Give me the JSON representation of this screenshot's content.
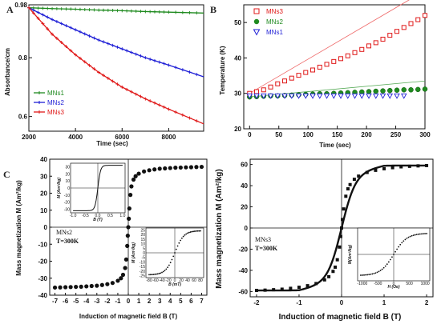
{
  "figure": {
    "panel_letters": [
      "A",
      "B",
      "C"
    ]
  },
  "chart_data": [
    {
      "id": "A",
      "type": "line",
      "xlabel": "Time (sec)",
      "ylabel": "Absorbance/cm",
      "xlim": [
        2000,
        9500
      ],
      "ylim": [
        0.55,
        0.98
      ],
      "xticks": [
        2000,
        4000,
        6000,
        8000
      ],
      "yticks": [
        0.6,
        0.8,
        0.98
      ],
      "ytick_labels": [
        "0.6",
        "0.8",
        "0.98"
      ],
      "legend_position": "bottom-left",
      "series": [
        {
          "name": "MNs1",
          "color": "#1f8a1f",
          "x": [
            2000,
            3000,
            4000,
            5000,
            6000,
            7000,
            8000,
            9500
          ],
          "values": [
            0.97,
            0.967,
            0.965,
            0.962,
            0.96,
            0.957,
            0.955,
            0.952
          ]
        },
        {
          "name": "MNs2",
          "color": "#1f1fd6",
          "x": [
            2000,
            3000,
            4000,
            5000,
            6000,
            7000,
            8000,
            9500
          ],
          "values": [
            0.97,
            0.93,
            0.895,
            0.86,
            0.83,
            0.8,
            0.775,
            0.735
          ]
        },
        {
          "name": "MNs3",
          "color": "#e01818",
          "x": [
            2000,
            3000,
            4000,
            5000,
            6000,
            7000,
            8000,
            9500
          ],
          "values": [
            0.97,
            0.88,
            0.81,
            0.75,
            0.7,
            0.66,
            0.625,
            0.575
          ]
        }
      ]
    },
    {
      "id": "B",
      "type": "scatter",
      "xlabel": "Time (sec)",
      "ylabel": "Temperature (K)",
      "xlim": [
        -10,
        300
      ],
      "ylim": [
        20,
        55
      ],
      "xticks": [
        0,
        50,
        100,
        150,
        200,
        250,
        300
      ],
      "yticks": [
        20,
        30,
        40,
        50
      ],
      "legend_position": "top-left",
      "series": [
        {
          "name": "MNs3",
          "color": "#e01818",
          "marker": "square",
          "x": [
            0,
            12,
            24,
            36,
            48,
            60,
            72,
            84,
            96,
            108,
            120,
            132,
            144,
            156,
            168,
            180,
            192,
            204,
            216,
            228,
            240,
            252,
            264,
            276,
            288,
            300
          ],
          "values": [
            30,
            30.5,
            31,
            31.8,
            32.7,
            33.5,
            34.3,
            35.1,
            35.9,
            36.6,
            37.4,
            38.2,
            39.0,
            39.8,
            40.6,
            41.5,
            42.4,
            43.4,
            44.3,
            45.3,
            46.4,
            47.5,
            48.6,
            49.7,
            50.8,
            52
          ]
        },
        {
          "name": "MNs2",
          "color": "#1f8a1f",
          "marker": "circle",
          "x": [
            0,
            12,
            24,
            36,
            48,
            60,
            72,
            84,
            96,
            108,
            120,
            132,
            144,
            156,
            168,
            180,
            192,
            204,
            216,
            228,
            240,
            252,
            264,
            276,
            288,
            300
          ],
          "values": [
            29,
            29.1,
            29.2,
            29.3,
            29.3,
            29.4,
            29.5,
            29.6,
            29.7,
            29.8,
            29.9,
            29.9,
            30.0,
            30.1,
            30.2,
            30.3,
            30.4,
            30.5,
            30.6,
            30.7,
            30.8,
            30.9,
            31.0,
            31.0,
            31.1,
            31.2
          ]
        },
        {
          "name": "MNs1",
          "color": "#1f1fd6",
          "marker": "triangle-down",
          "x": [
            0,
            12,
            24,
            36,
            48,
            60,
            72,
            84,
            96,
            108,
            120,
            132,
            144,
            156,
            168,
            180,
            192,
            204,
            216,
            228,
            240,
            252,
            264
          ],
          "values": [
            29.3,
            29.3,
            29.3,
            29.3,
            29.3,
            29.3,
            29.3,
            29.3,
            29.3,
            29.3,
            29.3,
            29.3,
            29.3,
            29.3,
            29.3,
            29.3,
            29.3,
            29.3,
            29.3,
            29.3,
            29.3,
            29.3,
            29.3
          ]
        }
      ],
      "fit_lines": [
        {
          "color": "#ee6666",
          "from": [
            0,
            30
          ],
          "to": [
            300,
            59
          ]
        },
        {
          "color": "#55aa55",
          "from": [
            0,
            29
          ],
          "to": [
            300,
            33.5
          ]
        }
      ]
    },
    {
      "id": "C-left",
      "type": "scatter",
      "xlabel": "Induction of magnetic field B (T)",
      "ylabel": "Mass magnetization M (Am²/kg)",
      "xlim": [
        -7.5,
        7.5
      ],
      "ylim": [
        -40,
        40
      ],
      "xticks": [
        -7,
        -6,
        -5,
        -4,
        -3,
        -2,
        -1,
        0,
        1,
        2,
        3,
        4,
        5,
        6,
        7
      ],
      "yticks": [
        -40,
        -30,
        -20,
        -10,
        0,
        10,
        20,
        30,
        40
      ],
      "annotation": [
        "MNs2",
        "T=300K"
      ],
      "series": [
        {
          "name": "MNs2",
          "color": "#111111",
          "B": [
            -7,
            -6.5,
            -6,
            -5.5,
            -5,
            -4.5,
            -4,
            -3.5,
            -3,
            -2.5,
            -2,
            -1.5,
            -1,
            -0.7,
            -0.5,
            -0.3,
            -0.2,
            -0.1,
            -0.05,
            0,
            0.05,
            0.1,
            0.2,
            0.3,
            0.5,
            0.7,
            1,
            1.5,
            2,
            2.5,
            3,
            3.5,
            4,
            4.5,
            5,
            5.5,
            6,
            6.5,
            7
          ],
          "M": [
            -35.5,
            -35.4,
            -35.3,
            -35.2,
            -35.1,
            -35,
            -34.8,
            -34.6,
            -34.4,
            -34,
            -33.5,
            -32.8,
            -31.5,
            -30,
            -28,
            -24,
            -19,
            -11,
            -5,
            0,
            5,
            11,
            19,
            24,
            28,
            30,
            31.5,
            32.8,
            33.5,
            34,
            34.4,
            34.6,
            34.8,
            35,
            35.1,
            35.2,
            35.3,
            35.4,
            35.5
          ]
        }
      ],
      "insets": [
        {
          "xlabel": "B (T)",
          "ylabel": "M (Am²/kg)",
          "xticks": [
            "-1.0",
            "-0.5",
            "0.0",
            "0.5",
            "1.0"
          ],
          "yticks": [
            "30",
            "20",
            "10",
            "0",
            "-10",
            "-20",
            "-30"
          ]
        },
        {
          "xlabel": "B (mT)",
          "ylabel": "M (Am²/kg)",
          "xticks": [
            "-80",
            "-60",
            "-40",
            "-20",
            "0",
            "20",
            "40",
            "60",
            "80"
          ],
          "yticks": [
            "25",
            "20",
            "15",
            "10",
            "5",
            "0",
            "-5",
            "-10",
            "-15",
            "-20",
            "-25"
          ]
        }
      ]
    },
    {
      "id": "C-right",
      "type": "scatter",
      "xlabel": "Induction of magnetic field B (T)",
      "ylabel": "Mass magnetization M (Am²/kg)",
      "xlim": [
        -2,
        2
      ],
      "ylim": [
        -65,
        65
      ],
      "xticks": [
        -2,
        -1,
        0,
        1,
        2
      ],
      "yticks": [
        -60,
        -40,
        -20,
        0,
        20,
        40,
        60
      ],
      "annotation": [
        "MNs3",
        "T=300K"
      ],
      "series": [
        {
          "name": "MNs3",
          "color": "#111111",
          "B": [
            -2,
            -1.8,
            -1.6,
            -1.4,
            -1.2,
            -1,
            -0.8,
            -0.6,
            -0.4,
            -0.3,
            -0.2,
            -0.15,
            -0.1,
            -0.05,
            -0.02,
            0,
            0.02,
            0.05,
            0.1,
            0.15,
            0.2,
            0.3,
            0.4,
            0.6,
            0.8,
            1,
            1.2,
            1.4,
            1.6,
            1.8,
            2
          ],
          "M": [
            -59,
            -58.7,
            -58.3,
            -57.8,
            -57,
            -56,
            -54.5,
            -52.5,
            -49,
            -46,
            -41,
            -37,
            -30,
            -18,
            -8,
            0,
            8,
            18,
            30,
            37,
            41,
            46,
            49,
            52.5,
            54.5,
            56,
            57,
            57.8,
            58.3,
            58.7,
            59
          ]
        }
      ],
      "insets": [
        {
          "xlabel": "H (Oe)",
          "ylabel": "M(Am²/kg)",
          "xticks": [
            "-1000",
            "-500",
            "0",
            "500",
            "1000"
          ]
        }
      ]
    }
  ]
}
